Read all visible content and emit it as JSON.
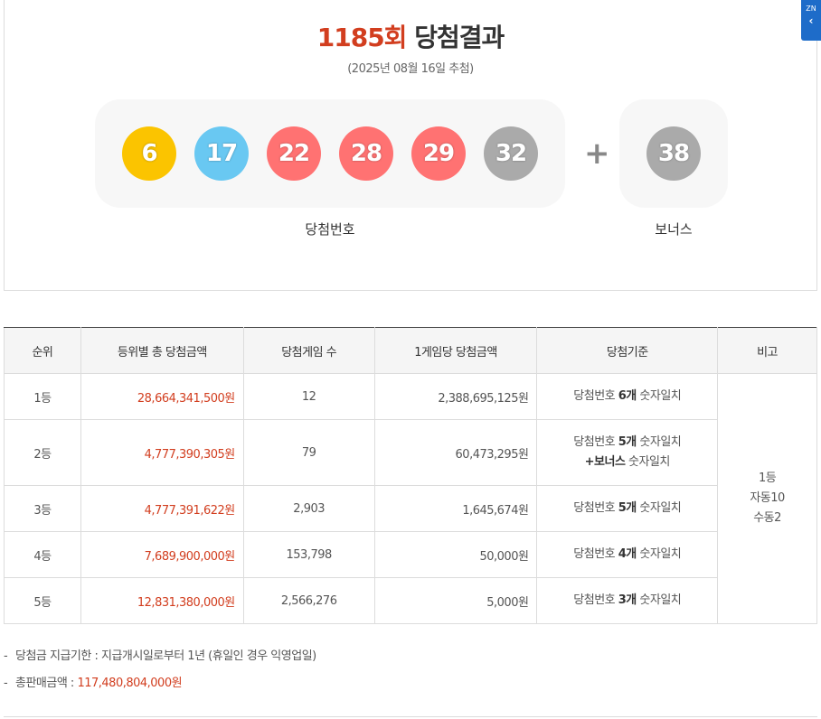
{
  "header": {
    "round": "1185회",
    "title_suffix": " 당첨결과",
    "draw_date": "(2025년 08월 16일 추첨)"
  },
  "win_numbers": [
    {
      "number": "6",
      "color": "#fbc400"
    },
    {
      "number": "17",
      "color": "#69c8f2"
    },
    {
      "number": "22",
      "color": "#ff7272"
    },
    {
      "number": "28",
      "color": "#ff7272"
    },
    {
      "number": "29",
      "color": "#ff7272"
    },
    {
      "number": "32",
      "color": "#aaaaaa"
    }
  ],
  "plus": "+",
  "bonus": {
    "number": "38",
    "color": "#aaaaaa"
  },
  "labels": {
    "win": "당첨번호",
    "bonus": "보너스"
  },
  "table": {
    "headers": [
      "순위",
      "등위별 총 당첨금액",
      "당첨게임 수",
      "1게임당 당첨금액",
      "당첨기준",
      "비고"
    ],
    "rows": [
      {
        "rank": "1등",
        "total": "28,664,341,500원",
        "games": "12",
        "per_game": "2,388,695,125원",
        "crit_pre": "당첨번호 ",
        "crit_bold": "6개",
        "crit_post": " 숫자일치",
        "crit_line2": ""
      },
      {
        "rank": "2등",
        "total": "4,777,390,305원",
        "games": "79",
        "per_game": "60,473,295원",
        "crit_pre": "당첨번호 ",
        "crit_bold": "5개",
        "crit_post": " 숫자일치",
        "crit_line2_bold": "+보너스",
        "crit_line2": " 숫자일치"
      },
      {
        "rank": "3등",
        "total": "4,777,391,622원",
        "games": "2,903",
        "per_game": "1,645,674원",
        "crit_pre": "당첨번호 ",
        "crit_bold": "5개",
        "crit_post": " 숫자일치",
        "crit_line2": ""
      },
      {
        "rank": "4등",
        "total": "7,689,900,000원",
        "games": "153,798",
        "per_game": "50,000원",
        "crit_pre": "당첨번호 ",
        "crit_bold": "4개",
        "crit_post": " 숫자일치",
        "crit_line2": ""
      },
      {
        "rank": "5등",
        "total": "12,831,380,000원",
        "games": "2,566,276",
        "per_game": "5,000원",
        "crit_pre": "당첨번호 ",
        "crit_bold": "3개",
        "crit_post": " 숫자일치",
        "crit_line2": ""
      }
    ],
    "remark": {
      "line1": "1등",
      "line2": "자동10",
      "line3": "수동2"
    }
  },
  "notes": {
    "dash": "-",
    "deadline": "당첨금 지급기한 : 지급개시일로부터 1년 (휴일인 경우 익영업일)",
    "sales_label": "총판매금액 : ",
    "sales_value": "117,480,804,000원"
  },
  "side_tab": {
    "label": "ZN",
    "chevron": "‹"
  }
}
